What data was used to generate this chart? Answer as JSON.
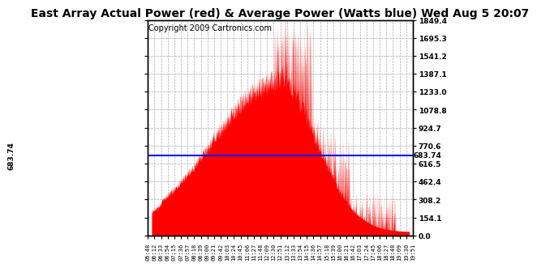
{
  "title": "East Array Actual Power (red) & Average Power (Watts blue) Wed Aug 5 20:07",
  "copyright": "Copyright 2009 Cartronics.com",
  "average_power": 683.74,
  "ymax": 1849.4,
  "yticks": [
    0.0,
    154.1,
    308.2,
    462.4,
    616.5,
    770.6,
    924.7,
    1078.8,
    1233.0,
    1387.1,
    1541.2,
    1695.3,
    1849.4
  ],
  "ytick_labels_right": [
    "0.0",
    "154.1",
    "308.2",
    "462.4",
    "616.5",
    "770.6",
    "924.7",
    "1078.8",
    "1233.0",
    "1387.1",
    "1541.2",
    "1695.3",
    "1849.4"
  ],
  "xtick_labels": [
    "05:48",
    "06:12",
    "06:33",
    "06:54",
    "07:15",
    "07:36",
    "07:57",
    "08:18",
    "08:39",
    "09:00",
    "09:21",
    "09:42",
    "10:03",
    "10:24",
    "10:45",
    "11:06",
    "11:27",
    "11:48",
    "12:09",
    "12:30",
    "12:51",
    "13:12",
    "13:33",
    "13:54",
    "14:15",
    "14:36",
    "14:57",
    "15:18",
    "15:39",
    "16:00",
    "16:21",
    "16:42",
    "17:03",
    "17:24",
    "17:45",
    "18:06",
    "18:27",
    "18:48",
    "19:09",
    "19:30",
    "19:51"
  ],
  "background_color": "#ffffff",
  "fill_color": "#ff0000",
  "line_color": "#0000ff",
  "grid_color": "#aaaaaa",
  "title_fontsize": 10,
  "copyright_fontsize": 7,
  "avg_label_fontsize": 7
}
